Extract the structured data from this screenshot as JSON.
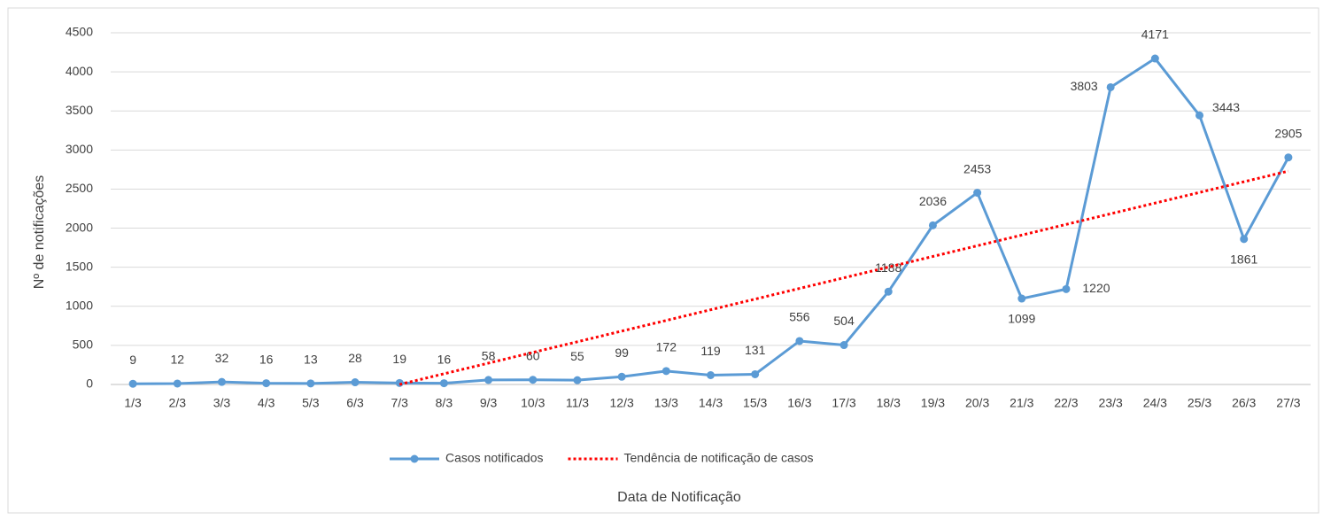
{
  "chart_data": {
    "type": "line",
    "x_label": "Data de Notificação",
    "y_label": "Nº de notificações",
    "categories": [
      "1/3",
      "2/3",
      "3/3",
      "4/3",
      "5/3",
      "6/3",
      "7/3",
      "8/3",
      "9/3",
      "10/3",
      "11/3",
      "12/3",
      "13/3",
      "14/3",
      "15/3",
      "16/3",
      "17/3",
      "18/3",
      "19/3",
      "20/3",
      "21/3",
      "22/3",
      "23/3",
      "24/3",
      "25/3",
      "26/3",
      "27/3"
    ],
    "series": [
      {
        "name": "Casos notificados",
        "color": "#5b9bd5",
        "data_labels": true,
        "values": [
          9,
          12,
          32,
          16,
          13,
          28,
          19,
          16,
          58,
          60,
          55,
          99,
          172,
          119,
          131,
          556,
          504,
          1188,
          2036,
          2453,
          1099,
          1220,
          3803,
          4171,
          3443,
          1861,
          2905
        ]
      },
      {
        "name": "Tendência de notificação de casos",
        "color": "#ff0000",
        "dotted": true,
        "values": [
          null,
          null,
          null,
          null,
          null,
          null,
          0,
          137,
          273,
          410,
          546,
          683,
          819,
          956,
          1092,
          1229,
          1365,
          1502,
          1638,
          1775,
          1911,
          2048,
          2184,
          2321,
          2457,
          2594,
          2730
        ]
      }
    ],
    "ylim": [
      0,
      4500
    ],
    "yticks": [
      0,
      500,
      1000,
      1500,
      2000,
      2500,
      3000,
      3500,
      4000,
      4500
    ],
    "grid": true,
    "legend": "bottom"
  }
}
